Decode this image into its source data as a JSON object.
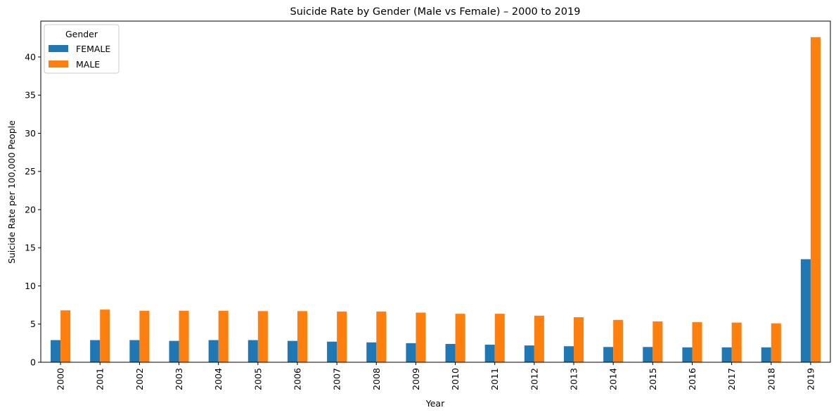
{
  "chart_data": {
    "type": "bar",
    "title": "Suicide Rate by Gender (Male vs Female) – 2000 to 2019",
    "xlabel": "Year",
    "ylabel": "Suicide Rate per 100,000 People",
    "categories": [
      "2000",
      "2001",
      "2002",
      "2003",
      "2004",
      "2005",
      "2006",
      "2007",
      "2008",
      "2009",
      "2010",
      "2011",
      "2012",
      "2013",
      "2014",
      "2015",
      "2016",
      "2017",
      "2018",
      "2019"
    ],
    "series": [
      {
        "name": "FEMALE",
        "color": "#1f77b4",
        "values": [
          2.9,
          2.9,
          2.9,
          2.8,
          2.9,
          2.9,
          2.8,
          2.7,
          2.6,
          2.5,
          2.4,
          2.3,
          2.2,
          2.1,
          2.0,
          2.0,
          1.95,
          1.95,
          1.95,
          13.5
        ]
      },
      {
        "name": "MALE",
        "color": "#ff7f0e",
        "values": [
          6.8,
          6.9,
          6.75,
          6.75,
          6.75,
          6.7,
          6.7,
          6.65,
          6.65,
          6.5,
          6.35,
          6.35,
          6.1,
          5.9,
          5.55,
          5.35,
          5.25,
          5.2,
          5.1,
          42.6
        ]
      }
    ],
    "yticks": [
      0,
      5,
      10,
      15,
      20,
      25,
      30,
      35,
      40
    ],
    "ylim": [
      0,
      44.7
    ],
    "legend": {
      "title": "Gender",
      "placement": "top-left"
    },
    "grid": false
  }
}
